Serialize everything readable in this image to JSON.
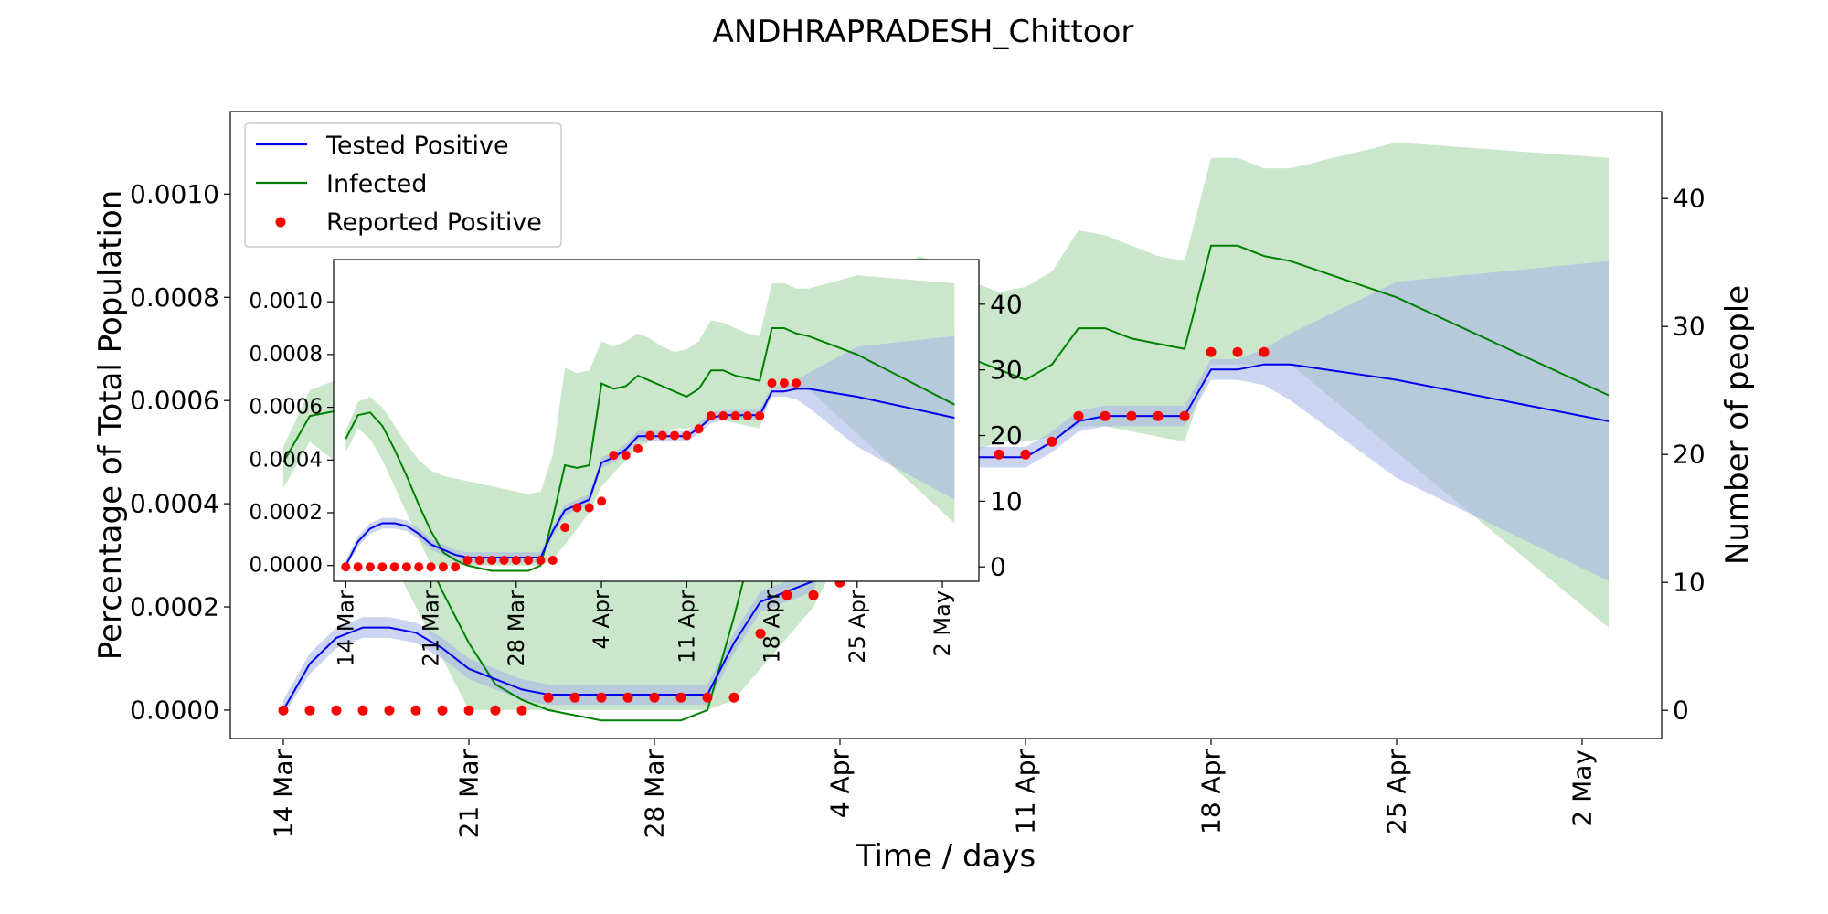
{
  "chart_data": [
    {
      "id": "main",
      "type": "line",
      "title": "ANDHRAPRADESH_Chittoor",
      "xlabel": "Time / days",
      "ylabel": "Percentage of Total Population",
      "ylabel_right": "Number of people",
      "xlim": [
        "2020-03-12",
        "2020-05-05"
      ],
      "ylim": [
        -5.5e-05,
        0.00116
      ],
      "ylim_right": [
        -2.2,
        46.8
      ],
      "x_ticks": [
        {
          "date": "2020-03-14",
          "label": "14 Mar"
        },
        {
          "date": "2020-03-21",
          "label": "21 Mar"
        },
        {
          "date": "2020-03-28",
          "label": "28 Mar"
        },
        {
          "date": "2020-04-04",
          "label": "4 Apr"
        },
        {
          "date": "2020-04-11",
          "label": "11 Apr"
        },
        {
          "date": "2020-04-18",
          "label": "18 Apr"
        },
        {
          "date": "2020-04-25",
          "label": "25 Apr"
        },
        {
          "date": "2020-05-02",
          "label": "2 May"
        }
      ],
      "y_ticks": [
        {
          "value": 0.0,
          "label": "0.0000"
        },
        {
          "value": 0.0002,
          "label": "0.0002"
        },
        {
          "value": 0.0004,
          "label": "0.0004"
        },
        {
          "value": 0.0006,
          "label": "0.0006"
        },
        {
          "value": 0.0008,
          "label": "0.0008"
        },
        {
          "value": 0.001,
          "label": "0.0010"
        }
      ],
      "y_ticks_right": [
        {
          "value": 0,
          "label": "0"
        },
        {
          "value": 10,
          "label": "10"
        },
        {
          "value": 20,
          "label": "20"
        },
        {
          "value": 30,
          "label": "30"
        },
        {
          "value": 40,
          "label": "40"
        }
      ],
      "legend": {
        "position": "top-left",
        "entries": [
          {
            "label": "Tested Positive",
            "color": "#0000ee",
            "marker": "line"
          },
          {
            "label": "Infected",
            "color": "#008000",
            "marker": "line"
          },
          {
            "label": "Reported Positive",
            "color": "#ff0000",
            "marker": "dot"
          }
        ]
      },
      "series": [
        {
          "name": "Infected",
          "color": "#008000",
          "band_color": "#c8e6c8",
          "x": [
            "2020-03-14",
            "2020-03-15",
            "2020-03-16",
            "2020-03-17",
            "2020-03-18",
            "2020-03-19",
            "2020-03-20",
            "2020-03-21",
            "2020-03-22",
            "2020-03-23",
            "2020-03-24",
            "2020-03-25",
            "2020-03-26",
            "2020-03-27",
            "2020-03-28",
            "2020-03-29",
            "2020-03-30",
            "2020-03-31",
            "2020-04-01",
            "2020-04-02",
            "2020-04-03",
            "2020-04-04",
            "2020-04-05",
            "2020-04-06",
            "2020-04-07",
            "2020-04-08",
            "2020-04-09",
            "2020-04-10",
            "2020-04-11",
            "2020-04-12",
            "2020-04-13",
            "2020-04-14",
            "2020-04-15",
            "2020-04-16",
            "2020-04-17",
            "2020-04-18",
            "2020-04-19",
            "2020-04-20",
            "2020-04-21",
            "2020-04-25",
            "2020-05-03"
          ],
          "y": [
            0.00048,
            0.00057,
            0.00058,
            0.00053,
            0.00044,
            0.00034,
            0.00023,
            0.00013,
            5e-05,
            2e-05,
            0.0,
            -1e-05,
            -2e-05,
            -2e-05,
            -2e-05,
            -2e-05,
            0.0,
            0.00018,
            0.00038,
            0.00037,
            0.00038,
            0.00069,
            0.00067,
            0.00068,
            0.00072,
            0.0007,
            0.00068,
            0.00066,
            0.00064,
            0.00067,
            0.00074,
            0.00074,
            0.00072,
            0.00071,
            0.0007,
            0.0009,
            0.0009,
            0.00088,
            0.00087,
            0.0008,
            0.00061
          ],
          "y_lower": [
            0.00043,
            0.00052,
            0.00048,
            0.0004,
            0.0003,
            0.0002,
            0.0001,
            0.0,
            0.0,
            0.0,
            0.0,
            0.0,
            0.0,
            0.0,
            0.0,
            0.0,
            0.0,
            2e-05,
            8e-05,
            0.00014,
            0.0002,
            0.0003,
            0.00035,
            0.0004,
            0.00045,
            0.00047,
            0.0005,
            0.00052,
            0.00052,
            0.00053,
            0.00055,
            0.00055,
            0.00054,
            0.00053,
            0.00052,
            0.00067,
            0.00067,
            0.00067,
            0.00067,
            0.0005,
            0.00016
          ],
          "y_upper": [
            0.00051,
            0.00062,
            0.00064,
            0.0006,
            0.00053,
            0.00046,
            0.0004,
            0.00036,
            0.00034,
            0.00033,
            0.00032,
            0.00031,
            0.0003,
            0.00029,
            0.00028,
            0.00027,
            0.00028,
            0.00042,
            0.00075,
            0.00073,
            0.00074,
            0.00085,
            0.00083,
            0.00085,
            0.00088,
            0.00086,
            0.00083,
            0.00081,
            0.00082,
            0.00085,
            0.00093,
            0.00092,
            0.0009,
            0.00088,
            0.00087,
            0.00107,
            0.00107,
            0.00105,
            0.00105,
            0.0011,
            0.00107
          ]
        },
        {
          "name": "Tested Positive",
          "color": "#0000ee",
          "band_color": "#a8b8e8",
          "x": [
            "2020-03-14",
            "2020-03-15",
            "2020-03-16",
            "2020-03-17",
            "2020-03-18",
            "2020-03-19",
            "2020-03-20",
            "2020-03-21",
            "2020-03-22",
            "2020-03-23",
            "2020-03-24",
            "2020-03-25",
            "2020-03-26",
            "2020-03-27",
            "2020-03-28",
            "2020-03-29",
            "2020-03-30",
            "2020-03-31",
            "2020-04-01",
            "2020-04-02",
            "2020-04-03",
            "2020-04-04",
            "2020-04-05",
            "2020-04-06",
            "2020-04-07",
            "2020-04-08",
            "2020-04-09",
            "2020-04-10",
            "2020-04-11",
            "2020-04-12",
            "2020-04-13",
            "2020-04-14",
            "2020-04-15",
            "2020-04-16",
            "2020-04-17",
            "2020-04-18",
            "2020-04-19",
            "2020-04-20",
            "2020-04-21",
            "2020-04-25",
            "2020-05-03"
          ],
          "y": [
            0.0,
            9e-05,
            0.00014,
            0.00016,
            0.00016,
            0.00015,
            0.00012,
            8e-05,
            6e-05,
            4e-05,
            3e-05,
            3e-05,
            3e-05,
            3e-05,
            3e-05,
            3e-05,
            3e-05,
            0.00013,
            0.00021,
            0.00023,
            0.00025,
            0.00039,
            0.00041,
            0.00044,
            0.00049,
            0.00049,
            0.00049,
            0.00049,
            0.00049,
            0.00052,
            0.00056,
            0.00057,
            0.00057,
            0.00057,
            0.00057,
            0.00066,
            0.00066,
            0.00067,
            0.00067,
            0.00064,
            0.00056
          ],
          "y_lower": [
            -1e-05,
            7e-05,
            0.00012,
            0.00014,
            0.00014,
            0.00013,
            0.0001,
            6e-05,
            4e-05,
            2e-05,
            1e-05,
            1e-05,
            1e-05,
            1e-05,
            1e-05,
            1e-05,
            1e-05,
            0.00011,
            0.00019,
            0.00021,
            0.00023,
            0.00037,
            0.00039,
            0.00042,
            0.00047,
            0.00047,
            0.00047,
            0.00047,
            0.00047,
            0.0005,
            0.00054,
            0.00055,
            0.00055,
            0.00055,
            0.00055,
            0.00064,
            0.00064,
            0.00063,
            0.0006,
            0.00045,
            0.00025
          ],
          "y_upper": [
            2e-05,
            0.00011,
            0.00016,
            0.00018,
            0.00018,
            0.00017,
            0.00014,
            0.0001,
            8e-05,
            6e-05,
            5e-05,
            5e-05,
            5e-05,
            5e-05,
            5e-05,
            5e-05,
            5e-05,
            0.00015,
            0.00023,
            0.00025,
            0.00027,
            0.00041,
            0.00043,
            0.00046,
            0.00051,
            0.00051,
            0.00051,
            0.00051,
            0.00051,
            0.00054,
            0.00058,
            0.00059,
            0.00059,
            0.00059,
            0.00059,
            0.00068,
            0.00068,
            0.0007,
            0.00073,
            0.00083,
            0.00087
          ]
        },
        {
          "name": "Reported Positive",
          "color": "#ff0000",
          "marker": "dot",
          "x": [
            "2020-03-14",
            "2020-03-15",
            "2020-03-16",
            "2020-03-17",
            "2020-03-18",
            "2020-03-19",
            "2020-03-20",
            "2020-03-21",
            "2020-03-22",
            "2020-03-23",
            "2020-03-24",
            "2020-03-25",
            "2020-03-26",
            "2020-03-27",
            "2020-03-28",
            "2020-03-29",
            "2020-03-30",
            "2020-03-31",
            "2020-04-01",
            "2020-04-02",
            "2020-04-03",
            "2020-04-04",
            "2020-04-05",
            "2020-04-06",
            "2020-04-07",
            "2020-04-08",
            "2020-04-09",
            "2020-04-10",
            "2020-04-11",
            "2020-04-12",
            "2020-04-13",
            "2020-04-14",
            "2020-04-15",
            "2020-04-16",
            "2020-04-17",
            "2020-04-18",
            "2020-04-19",
            "2020-04-20"
          ],
          "y_people": [
            0,
            0,
            0,
            0,
            0,
            0,
            0,
            0,
            0,
            0,
            1,
            1,
            1,
            1,
            1,
            1,
            1,
            1,
            6,
            9,
            9,
            10,
            17,
            17,
            18,
            20,
            20,
            20,
            20,
            21,
            23,
            23,
            23,
            23,
            23,
            28,
            28,
            28
          ]
        }
      ]
    },
    {
      "id": "inset",
      "type": "line",
      "xlim": [
        "2020-03-13",
        "2020-05-05"
      ],
      "ylim": [
        -6e-05,
        0.00116
      ],
      "ylim_right": [
        -2.2,
        46.8
      ],
      "x_ticks": [
        {
          "date": "2020-03-14",
          "label": "14 Mar"
        },
        {
          "date": "2020-03-21",
          "label": "21 Mar"
        },
        {
          "date": "2020-03-28",
          "label": "28 Mar"
        },
        {
          "date": "2020-04-04",
          "label": "4 Apr"
        },
        {
          "date": "2020-04-11",
          "label": "11 Apr"
        },
        {
          "date": "2020-04-18",
          "label": "18 Apr"
        },
        {
          "date": "2020-04-25",
          "label": "25 Apr"
        },
        {
          "date": "2020-05-02",
          "label": "2 May"
        }
      ],
      "y_ticks": [
        {
          "value": 0.0,
          "label": "0.0000"
        },
        {
          "value": 0.0002,
          "label": "0.0002"
        },
        {
          "value": 0.0004,
          "label": "0.0004"
        },
        {
          "value": 0.0006,
          "label": "0.0006"
        },
        {
          "value": 0.0008,
          "label": "0.0008"
        },
        {
          "value": 0.001,
          "label": "0.0010"
        }
      ],
      "y_ticks_right": [
        {
          "value": 0,
          "label": "0"
        },
        {
          "value": 10,
          "label": "10"
        },
        {
          "value": 20,
          "label": "20"
        },
        {
          "value": 30,
          "label": "30"
        },
        {
          "value": 40,
          "label": "40"
        }
      ]
    }
  ]
}
